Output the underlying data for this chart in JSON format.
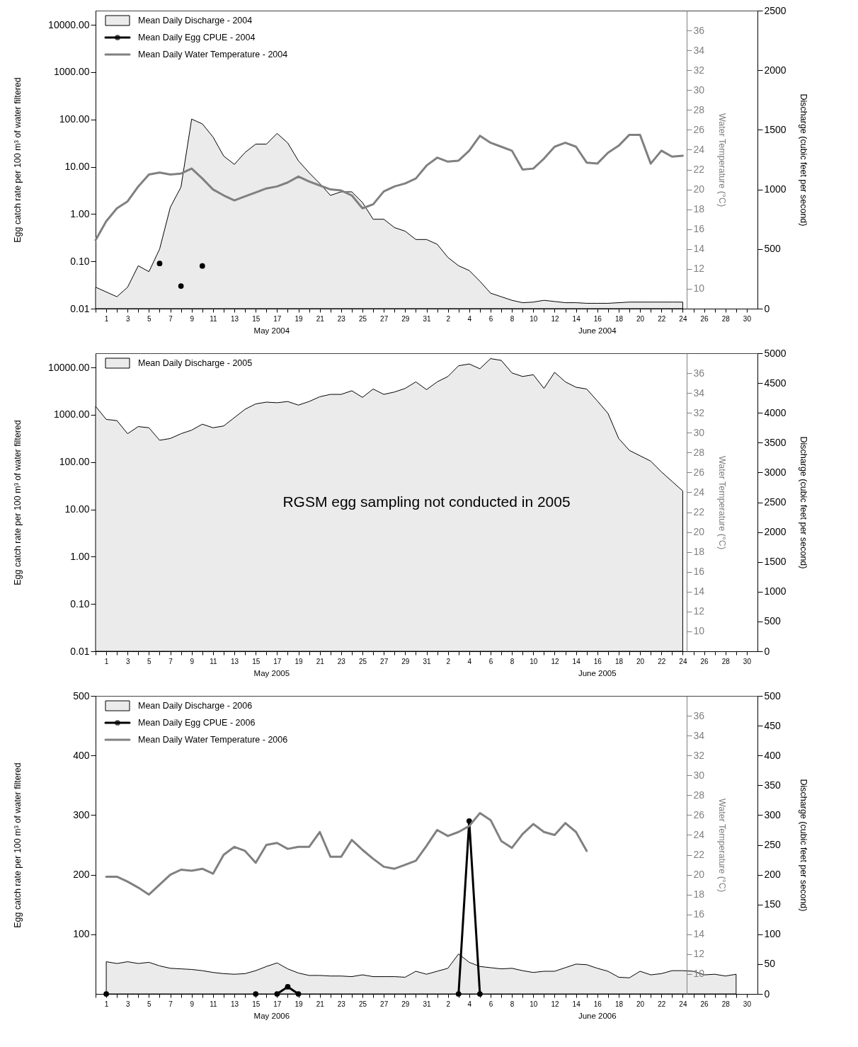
{
  "chart_data": [
    {
      "type": "area",
      "ylabel": "Egg catch rate per 100 m³ of water filtered",
      "y2label": "Discharge (cubic feet per second)",
      "y3label": "Water Temperature (°C)",
      "annotations": [
        "May 2004",
        "June 2004"
      ],
      "legend": "top left",
      "log": "y",
      "xlim": [
        "2004-04-30",
        "2004-07-01"
      ],
      "ylim": [
        0.01,
        20000
      ],
      "y2lim": [
        0,
        2500
      ],
      "y3lim": [
        8,
        38
      ],
      "yticks": [
        0.01,
        {
          "value": 0.1,
          "label": "0.10"
        },
        {
          "value": 1,
          "label": "1.00"
        },
        {
          "value": 10,
          "label": "10.00"
        },
        {
          "value": 100,
          "label": "100.00"
        },
        {
          "value": 1000,
          "label": "1000.00"
        },
        {
          "value": 10000,
          "label": "10000.00"
        }
      ],
      "y2ticks": [
        0,
        500,
        1000,
        1500,
        2000,
        2500
      ],
      "y3ticks": [
        10,
        12,
        14,
        16,
        18,
        20,
        22,
        24,
        26,
        28,
        30,
        32,
        34,
        36
      ],
      "xticks": [
        {
          "value": "2004-04-30",
          "label": null
        },
        {
          "value": "2004-05-01",
          "label": "1"
        },
        {
          "value": "2004-05-02",
          "label": null
        },
        {
          "value": "2004-05-03",
          "label": "3"
        },
        {
          "value": "2004-05-04",
          "label": null
        },
        {
          "value": "2004-05-05",
          "label": "5"
        },
        {
          "value": "2004-05-06",
          "label": null
        },
        {
          "value": "2004-05-07",
          "label": "7"
        },
        {
          "value": "2004-05-08",
          "label": null
        },
        {
          "value": "2004-05-09",
          "label": "9"
        },
        {
          "value": "2004-05-10",
          "label": null
        },
        {
          "value": "2004-05-11",
          "label": "11"
        },
        {
          "value": "2004-05-12",
          "label": null
        },
        {
          "value": "2004-05-13",
          "label": "13"
        },
        {
          "value": "2004-05-14",
          "label": null
        },
        {
          "value": "2004-05-15",
          "label": "15"
        },
        {
          "value": "2004-05-16",
          "label": null
        },
        {
          "value": "2004-05-17",
          "label": "17"
        },
        {
          "value": "2004-05-18",
          "label": null
        },
        {
          "value": "2004-05-19",
          "label": "19"
        },
        {
          "value": "2004-05-20",
          "label": null
        },
        {
          "value": "2004-05-21",
          "label": "21"
        },
        {
          "value": "2004-05-22",
          "label": null
        },
        {
          "value": "2004-05-23",
          "label": "23"
        },
        {
          "value": "2004-05-24",
          "label": null
        },
        {
          "value": "2004-05-25",
          "label": "25"
        },
        {
          "value": "2004-05-26",
          "label": null
        },
        {
          "value": "2004-05-27",
          "label": "27"
        },
        {
          "value": "2004-05-28",
          "label": null
        },
        {
          "value": "2004-05-29",
          "label": "29"
        },
        {
          "value": "2004-05-30",
          "label": null
        },
        {
          "value": "2004-05-31",
          "label": "31"
        },
        {
          "value": "2004-06-01",
          "label": null
        },
        {
          "value": "2004-06-02",
          "label": "2"
        },
        {
          "value": "2004-06-03",
          "label": null
        },
        {
          "value": "2004-06-04",
          "label": "4"
        },
        {
          "value": "2004-06-05",
          "label": null
        },
        {
          "value": "2004-06-06",
          "label": "6"
        },
        {
          "value": "2004-06-07",
          "label": null
        },
        {
          "value": "2004-06-08",
          "label": "8"
        },
        {
          "value": "2004-06-09",
          "label": null
        },
        {
          "value": "2004-06-10",
          "label": "10"
        },
        {
          "value": "2004-06-11",
          "label": null
        },
        {
          "value": "2004-06-12",
          "label": "12"
        },
        {
          "value": "2004-06-13",
          "label": null
        },
        {
          "value": "2004-06-14",
          "label": "14"
        },
        {
          "value": "2004-06-15",
          "label": null
        },
        {
          "value": "2004-06-16",
          "label": "16"
        },
        {
          "value": "2004-06-17",
          "label": null
        },
        {
          "value": "2004-06-18",
          "label": "18"
        },
        {
          "value": "2004-06-19",
          "label": null
        },
        {
          "value": "2004-06-20",
          "label": "20"
        },
        {
          "value": "2004-06-21",
          "label": null
        },
        {
          "value": "2004-06-22",
          "label": "22"
        },
        {
          "value": "2004-06-23",
          "label": null
        },
        {
          "value": "2004-06-24",
          "label": "24"
        },
        {
          "value": "2004-06-25",
          "label": null
        },
        {
          "value": "2004-06-26",
          "label": "26"
        },
        {
          "value": "2004-06-27",
          "label": null
        },
        {
          "value": "2004-06-28",
          "label": "28"
        },
        {
          "value": "2004-06-29",
          "label": null
        },
        {
          "value": "2004-06-30",
          "label": "30"
        }
      ],
      "x": [
        "2004-04-30",
        "2004-05-01",
        "2004-05-02",
        "2004-05-03",
        "2004-05-04",
        "2004-05-05",
        "2004-05-06",
        "2004-05-07",
        "2004-05-08",
        "2004-05-09",
        "2004-05-10",
        "2004-05-11",
        "2004-05-12",
        "2004-05-13",
        "2004-05-14",
        "2004-05-15",
        "2004-05-16",
        "2004-05-17",
        "2004-05-18",
        "2004-05-19",
        "2004-05-20",
        "2004-05-21",
        "2004-05-22",
        "2004-05-23",
        "2004-05-24",
        "2004-05-25",
        "2004-05-26",
        "2004-05-27",
        "2004-05-28",
        "2004-05-29",
        "2004-05-30",
        "2004-05-31",
        "2004-06-01",
        "2004-06-02",
        "2004-06-03",
        "2004-06-04",
        "2004-06-05",
        "2004-06-06",
        "2004-06-07",
        "2004-06-08",
        "2004-06-09",
        "2004-06-10",
        "2004-06-11",
        "2004-06-12",
        "2004-06-13",
        "2004-06-14",
        "2004-06-15",
        "2004-06-16",
        "2004-06-17",
        "2004-06-18",
        "2004-06-19",
        "2004-06-20",
        "2004-06-21",
        "2004-06-22",
        "2004-06-23",
        "2004-06-24"
      ],
      "series": [
        {
          "name": "Mean Daily Discharge - 2004",
          "axis": "y2",
          "color": "#ebebeb",
          "values": [
            180,
            140,
            100,
            180,
            360,
            310,
            500,
            850,
            1020,
            1590,
            1550,
            1440,
            1280,
            1210,
            1310,
            1380,
            1380,
            1470,
            1390,
            1240,
            1140,
            1050,
            950,
            980,
            980,
            890,
            750,
            750,
            680,
            650,
            580,
            580,
            540,
            430,
            360,
            320,
            230,
            130,
            100,
            70,
            50,
            55,
            70,
            60,
            50,
            50,
            45,
            45,
            45,
            50,
            55,
            55,
            55,
            55,
            55,
            55
          ]
        },
        {
          "name": "Mean Daily Egg CPUE - 2004",
          "type": "line",
          "marker": "circle",
          "color": "#000000",
          "values": [
            null,
            null,
            null,
            null,
            null,
            null,
            0.09,
            null,
            0.03,
            null,
            0.08,
            null,
            null,
            null,
            null,
            null,
            null,
            null,
            null,
            null,
            null,
            null,
            null,
            null,
            null,
            null,
            null,
            null,
            null,
            null,
            null,
            null,
            null,
            null,
            null,
            null,
            null,
            null,
            null,
            null,
            null,
            null,
            null,
            null,
            null,
            null,
            null,
            null,
            null,
            null,
            null,
            null,
            null,
            null,
            null,
            null
          ]
        },
        {
          "name": "Mean Daily Water Temperature - 2004",
          "type": "line",
          "axis": "y3",
          "color": "#808080",
          "values": [
            14.9,
            16.8,
            18.1,
            18.8,
            20.3,
            21.5,
            21.7,
            21.5,
            21.6,
            22.1,
            21.1,
            20.0,
            19.4,
            18.9,
            19.3,
            19.7,
            20.1,
            20.3,
            20.7,
            21.3,
            20.8,
            20.4,
            20.0,
            19.9,
            19.4,
            18.1,
            18.5,
            19.8,
            20.3,
            20.6,
            21.1,
            22.4,
            23.2,
            22.8,
            22.9,
            23.9,
            25.4,
            24.7,
            24.3,
            23.9,
            22.0,
            22.1,
            23.1,
            24.3,
            24.7,
            24.3,
            22.7,
            22.6,
            23.7,
            24.4,
            25.5,
            25.5,
            22.6,
            23.9,
            23.3,
            23.4
          ]
        }
      ]
    },
    {
      "type": "area",
      "ylabel": "Egg catch rate per 100 m³ of water filtered",
      "y2label": "Discharge (cubic feet per second)",
      "y3label": "Water Temperature (°C)",
      "annotations": [
        "May 2005",
        "June 2005",
        "RGSM egg sampling not conducted in 2005"
      ],
      "legend": "top left",
      "log": "y",
      "xlim": [
        "2005-04-30",
        "2005-07-01"
      ],
      "ylim": [
        0.01,
        20000
      ],
      "y2lim": [
        0,
        5000
      ],
      "y3lim": [
        8,
        38
      ],
      "yticks": [
        0.01,
        {
          "value": 0.1,
          "label": "0.10"
        },
        {
          "value": 1,
          "label": "1.00"
        },
        {
          "value": 10,
          "label": "10.00"
        },
        {
          "value": 100,
          "label": "100.00"
        },
        {
          "value": 1000,
          "label": "1000.00"
        },
        {
          "value": 10000,
          "label": "10000.00"
        }
      ],
      "y2ticks": [
        0,
        500,
        1000,
        1500,
        2000,
        2500,
        3000,
        3500,
        4000,
        4500,
        5000
      ],
      "y3ticks": [
        10,
        12,
        14,
        16,
        18,
        20,
        22,
        24,
        26,
        28,
        30,
        32,
        34,
        36
      ],
      "xticks": [
        {
          "value": "2005-04-30",
          "label": null
        },
        {
          "value": "2005-05-01",
          "label": "1"
        },
        {
          "value": "2005-05-02",
          "label": null
        },
        {
          "value": "2005-05-03",
          "label": "3"
        },
        {
          "value": "2005-05-04",
          "label": null
        },
        {
          "value": "2005-05-05",
          "label": "5"
        },
        {
          "value": "2005-05-06",
          "label": null
        },
        {
          "value": "2005-05-07",
          "label": "7"
        },
        {
          "value": "2005-05-08",
          "label": null
        },
        {
          "value": "2005-05-09",
          "label": "9"
        },
        {
          "value": "2005-05-10",
          "label": null
        },
        {
          "value": "2005-05-11",
          "label": "11"
        },
        {
          "value": "2005-05-12",
          "label": null
        },
        {
          "value": "2005-05-13",
          "label": "13"
        },
        {
          "value": "2005-05-14",
          "label": null
        },
        {
          "value": "2005-05-15",
          "label": "15"
        },
        {
          "value": "2005-05-16",
          "label": null
        },
        {
          "value": "2005-05-17",
          "label": "17"
        },
        {
          "value": "2005-05-18",
          "label": null
        },
        {
          "value": "2005-05-19",
          "label": "19"
        },
        {
          "value": "2005-05-20",
          "label": null
        },
        {
          "value": "2005-05-21",
          "label": "21"
        },
        {
          "value": "2005-05-22",
          "label": null
        },
        {
          "value": "2005-05-23",
          "label": "23"
        },
        {
          "value": "2005-05-24",
          "label": null
        },
        {
          "value": "2005-05-25",
          "label": "25"
        },
        {
          "value": "2005-05-26",
          "label": null
        },
        {
          "value": "2005-05-27",
          "label": "27"
        },
        {
          "value": "2005-05-28",
          "label": null
        },
        {
          "value": "2005-05-29",
          "label": "29"
        },
        {
          "value": "2005-05-30",
          "label": null
        },
        {
          "value": "2005-05-31",
          "label": "31"
        },
        {
          "value": "2005-06-01",
          "label": null
        },
        {
          "value": "2005-06-02",
          "label": "2"
        },
        {
          "value": "2005-06-03",
          "label": null
        },
        {
          "value": "2005-06-04",
          "label": "4"
        },
        {
          "value": "2005-06-05",
          "label": null
        },
        {
          "value": "2005-06-06",
          "label": "6"
        },
        {
          "value": "2005-06-07",
          "label": null
        },
        {
          "value": "2005-06-08",
          "label": "8"
        },
        {
          "value": "2005-06-09",
          "label": null
        },
        {
          "value": "2005-06-10",
          "label": "10"
        },
        {
          "value": "2005-06-11",
          "label": null
        },
        {
          "value": "2005-06-12",
          "label": "12"
        },
        {
          "value": "2005-06-13",
          "label": null
        },
        {
          "value": "2005-06-14",
          "label": "14"
        },
        {
          "value": "2005-06-15",
          "label": null
        },
        {
          "value": "2005-06-16",
          "label": "16"
        },
        {
          "value": "2005-06-17",
          "label": null
        },
        {
          "value": "2005-06-18",
          "label": "18"
        },
        {
          "value": "2005-06-19",
          "label": null
        },
        {
          "value": "2005-06-20",
          "label": "20"
        },
        {
          "value": "2005-06-21",
          "label": null
        },
        {
          "value": "2005-06-22",
          "label": "22"
        },
        {
          "value": "2005-06-23",
          "label": null
        },
        {
          "value": "2005-06-24",
          "label": "24"
        },
        {
          "value": "2005-06-25",
          "label": null
        },
        {
          "value": "2005-06-26",
          "label": "26"
        },
        {
          "value": "2005-06-27",
          "label": null
        },
        {
          "value": "2005-06-28",
          "label": "28"
        },
        {
          "value": "2005-06-29",
          "label": null
        },
        {
          "value": "2005-06-30",
          "label": "30"
        }
      ],
      "x": [
        "2005-04-30",
        "2005-05-01",
        "2005-05-02",
        "2005-05-03",
        "2005-05-04",
        "2005-05-05",
        "2005-05-06",
        "2005-05-07",
        "2005-05-08",
        "2005-05-09",
        "2005-05-10",
        "2005-05-11",
        "2005-05-12",
        "2005-05-13",
        "2005-05-14",
        "2005-05-15",
        "2005-05-16",
        "2005-05-17",
        "2005-05-18",
        "2005-05-19",
        "2005-05-20",
        "2005-05-21",
        "2005-05-22",
        "2005-05-23",
        "2005-05-24",
        "2005-05-25",
        "2005-05-26",
        "2005-05-27",
        "2005-05-28",
        "2005-05-29",
        "2005-05-30",
        "2005-05-31",
        "2005-06-01",
        "2005-06-02",
        "2005-06-03",
        "2005-06-04",
        "2005-06-05",
        "2005-06-06",
        "2005-06-07",
        "2005-06-08",
        "2005-06-09",
        "2005-06-10",
        "2005-06-11",
        "2005-06-12",
        "2005-06-13",
        "2005-06-14",
        "2005-06-15",
        "2005-06-16",
        "2005-06-17",
        "2005-06-18",
        "2005-06-19",
        "2005-06-20",
        "2005-06-21",
        "2005-06-22",
        "2005-06-23",
        "2005-06-24"
      ],
      "series": [
        {
          "name": "Mean Daily Discharge - 2005",
          "axis": "y2",
          "color": "#ebebeb",
          "values": [
            4110,
            3890,
            3870,
            3650,
            3770,
            3750,
            3540,
            3570,
            3650,
            3710,
            3810,
            3750,
            3780,
            3920,
            4060,
            4150,
            4180,
            4170,
            4190,
            4130,
            4190,
            4270,
            4310,
            4310,
            4370,
            4260,
            4400,
            4310,
            4350,
            4410,
            4520,
            4390,
            4520,
            4610,
            4790,
            4820,
            4740,
            4910,
            4880,
            4670,
            4610,
            4640,
            4410,
            4680,
            4520,
            4430,
            4400,
            4200,
            3990,
            3570,
            3370,
            3280,
            3190,
            3010,
            2850,
            2690
          ]
        }
      ]
    },
    {
      "type": "area",
      "ylabel": "Egg catch rate per 100 m³ of water filtered",
      "y2label": "Discharge (cubic feet per second)",
      "y3label": "Water Temperature (°C)",
      "annotations": [
        "May 2006",
        "June 2006"
      ],
      "legend": "top left",
      "xlim": [
        "2006-04-30",
        "2006-07-01"
      ],
      "ylim": [
        0,
        500
      ],
      "y2lim": [
        0,
        500
      ],
      "y3lim": [
        8,
        38
      ],
      "yticks": [
        100,
        200,
        300,
        400,
        500
      ],
      "y2ticks": [
        0,
        50,
        100,
        150,
        200,
        250,
        300,
        350,
        400,
        450,
        500
      ],
      "y3ticks": [
        10,
        12,
        14,
        16,
        18,
        20,
        22,
        24,
        26,
        28,
        30,
        32,
        34,
        36
      ],
      "xticks": [
        {
          "value": "2006-04-30",
          "label": null
        },
        {
          "value": "2006-05-01",
          "label": "1"
        },
        {
          "value": "2006-05-02",
          "label": null
        },
        {
          "value": "2006-05-03",
          "label": "3"
        },
        {
          "value": "2006-05-04",
          "label": null
        },
        {
          "value": "2006-05-05",
          "label": "5"
        },
        {
          "value": "2006-05-06",
          "label": null
        },
        {
          "value": "2006-05-07",
          "label": "7"
        },
        {
          "value": "2006-05-08",
          "label": null
        },
        {
          "value": "2006-05-09",
          "label": "9"
        },
        {
          "value": "2006-05-10",
          "label": null
        },
        {
          "value": "2006-05-11",
          "label": "11"
        },
        {
          "value": "2006-05-12",
          "label": null
        },
        {
          "value": "2006-05-13",
          "label": "13"
        },
        {
          "value": "2006-05-14",
          "label": null
        },
        {
          "value": "2006-05-15",
          "label": "15"
        },
        {
          "value": "2006-05-16",
          "label": null
        },
        {
          "value": "2006-05-17",
          "label": "17"
        },
        {
          "value": "2006-05-18",
          "label": null
        },
        {
          "value": "2006-05-19",
          "label": "19"
        },
        {
          "value": "2006-05-20",
          "label": null
        },
        {
          "value": "2006-05-21",
          "label": "21"
        },
        {
          "value": "2006-05-22",
          "label": null
        },
        {
          "value": "2006-05-23",
          "label": "23"
        },
        {
          "value": "2006-05-24",
          "label": null
        },
        {
          "value": "2006-05-25",
          "label": "25"
        },
        {
          "value": "2006-05-26",
          "label": null
        },
        {
          "value": "2006-05-27",
          "label": "27"
        },
        {
          "value": "2006-05-28",
          "label": null
        },
        {
          "value": "2006-05-29",
          "label": "29"
        },
        {
          "value": "2006-05-30",
          "label": null
        },
        {
          "value": "2006-05-31",
          "label": "31"
        },
        {
          "value": "2006-06-01",
          "label": null
        },
        {
          "value": "2006-06-02",
          "label": "2"
        },
        {
          "value": "2006-06-03",
          "label": null
        },
        {
          "value": "2006-06-04",
          "label": "4"
        },
        {
          "value": "2006-06-05",
          "label": null
        },
        {
          "value": "2006-06-06",
          "label": "6"
        },
        {
          "value": "2006-06-07",
          "label": null
        },
        {
          "value": "2006-06-08",
          "label": "8"
        },
        {
          "value": "2006-06-09",
          "label": null
        },
        {
          "value": "2006-06-10",
          "label": "10"
        },
        {
          "value": "2006-06-11",
          "label": null
        },
        {
          "value": "2006-06-12",
          "label": "12"
        },
        {
          "value": "2006-06-13",
          "label": null
        },
        {
          "value": "2006-06-14",
          "label": "14"
        },
        {
          "value": "2006-06-15",
          "label": null
        },
        {
          "value": "2006-06-16",
          "label": "16"
        },
        {
          "value": "2006-06-17",
          "label": null
        },
        {
          "value": "2006-06-18",
          "label": "18"
        },
        {
          "value": "2006-06-19",
          "label": null
        },
        {
          "value": "2006-06-20",
          "label": "20"
        },
        {
          "value": "2006-06-21",
          "label": null
        },
        {
          "value": "2006-06-22",
          "label": "22"
        },
        {
          "value": "2006-06-23",
          "label": null
        },
        {
          "value": "2006-06-24",
          "label": "24"
        },
        {
          "value": "2006-06-25",
          "label": null
        },
        {
          "value": "2006-06-26",
          "label": "26"
        },
        {
          "value": "2006-06-27",
          "label": null
        },
        {
          "value": "2006-06-28",
          "label": "28"
        },
        {
          "value": "2006-06-29",
          "label": null
        },
        {
          "value": "2006-06-30",
          "label": "30"
        }
      ],
      "x": [
        "2006-05-01",
        "2006-05-02",
        "2006-05-03",
        "2006-05-04",
        "2006-05-05",
        "2006-05-06",
        "2006-05-07",
        "2006-05-08",
        "2006-05-09",
        "2006-05-10",
        "2006-05-11",
        "2006-05-12",
        "2006-05-13",
        "2006-05-14",
        "2006-05-15",
        "2006-05-16",
        "2006-05-17",
        "2006-05-18",
        "2006-05-19",
        "2006-05-20",
        "2006-05-21",
        "2006-05-22",
        "2006-05-23",
        "2006-05-24",
        "2006-05-25",
        "2006-05-26",
        "2006-05-27",
        "2006-05-28",
        "2006-05-29",
        "2006-05-30",
        "2006-05-31",
        "2006-06-01",
        "2006-06-02",
        "2006-06-03",
        "2006-06-04",
        "2006-06-05",
        "2006-06-06",
        "2006-06-07",
        "2006-06-08",
        "2006-06-09",
        "2006-06-10",
        "2006-06-11",
        "2006-06-12",
        "2006-06-13",
        "2006-06-14",
        "2006-06-15",
        "2006-06-16",
        "2006-06-17",
        "2006-06-18",
        "2006-06-19",
        "2006-06-20",
        "2006-06-21",
        "2006-06-22",
        "2006-06-23",
        "2006-06-24",
        "2006-06-25",
        "2006-06-26",
        "2006-06-27",
        "2006-06-28",
        "2006-06-29"
      ],
      "series": [
        {
          "name": "Mean Daily Discharge - 2006",
          "axis": "y2",
          "color": "#ebebeb",
          "values": [
            54,
            51,
            54,
            51,
            53,
            47,
            43,
            42,
            41,
            39,
            36,
            34,
            33,
            34,
            39,
            46,
            52,
            42,
            35,
            31,
            31,
            30,
            30,
            29,
            32,
            29,
            29,
            29,
            28,
            38,
            33,
            38,
            43,
            67,
            53,
            46,
            44,
            42,
            43,
            39,
            36,
            38,
            38,
            44,
            50,
            49,
            43,
            38,
            28,
            27,
            38,
            32,
            34,
            39,
            39,
            38,
            32,
            33,
            30,
            33
          ]
        },
        {
          "name": "Mean Daily Egg CPUE - 2006",
          "type": "line",
          "marker": "circle",
          "color": "#000000",
          "values": [
            0,
            null,
            null,
            null,
            null,
            null,
            null,
            null,
            null,
            null,
            null,
            null,
            null,
            null,
            0,
            null,
            0,
            12,
            0,
            null,
            null,
            null,
            null,
            null,
            null,
            null,
            null,
            null,
            null,
            null,
            null,
            null,
            null,
            0,
            290,
            0,
            null,
            null,
            null,
            null,
            null,
            null,
            null,
            null,
            null,
            null,
            null,
            null,
            null,
            null,
            null,
            null,
            null,
            null,
            null,
            null,
            null,
            null,
            null,
            null
          ]
        },
        {
          "name": "Mean Daily Water Temperature - 2006",
          "type": "line",
          "axis": "y3",
          "color": "#808080",
          "values": [
            19.8,
            19.8,
            19.3,
            18.7,
            18.0,
            19.0,
            20.0,
            20.5,
            20.4,
            20.6,
            20.1,
            22.0,
            22.8,
            22.4,
            21.2,
            23.0,
            23.2,
            22.6,
            22.8,
            22.8,
            24.3,
            21.8,
            21.8,
            23.5,
            22.5,
            21.6,
            20.8,
            20.6,
            21.0,
            21.4,
            22.9,
            24.5,
            23.9,
            24.3,
            24.9,
            26.2,
            25.5,
            23.4,
            22.7,
            24.1,
            25.1,
            24.3,
            24.0,
            25.2,
            24.3,
            22.4,
            null,
            null,
            null,
            null,
            null,
            null,
            null,
            null,
            null,
            null,
            null,
            null,
            null,
            null
          ]
        }
      ]
    }
  ]
}
